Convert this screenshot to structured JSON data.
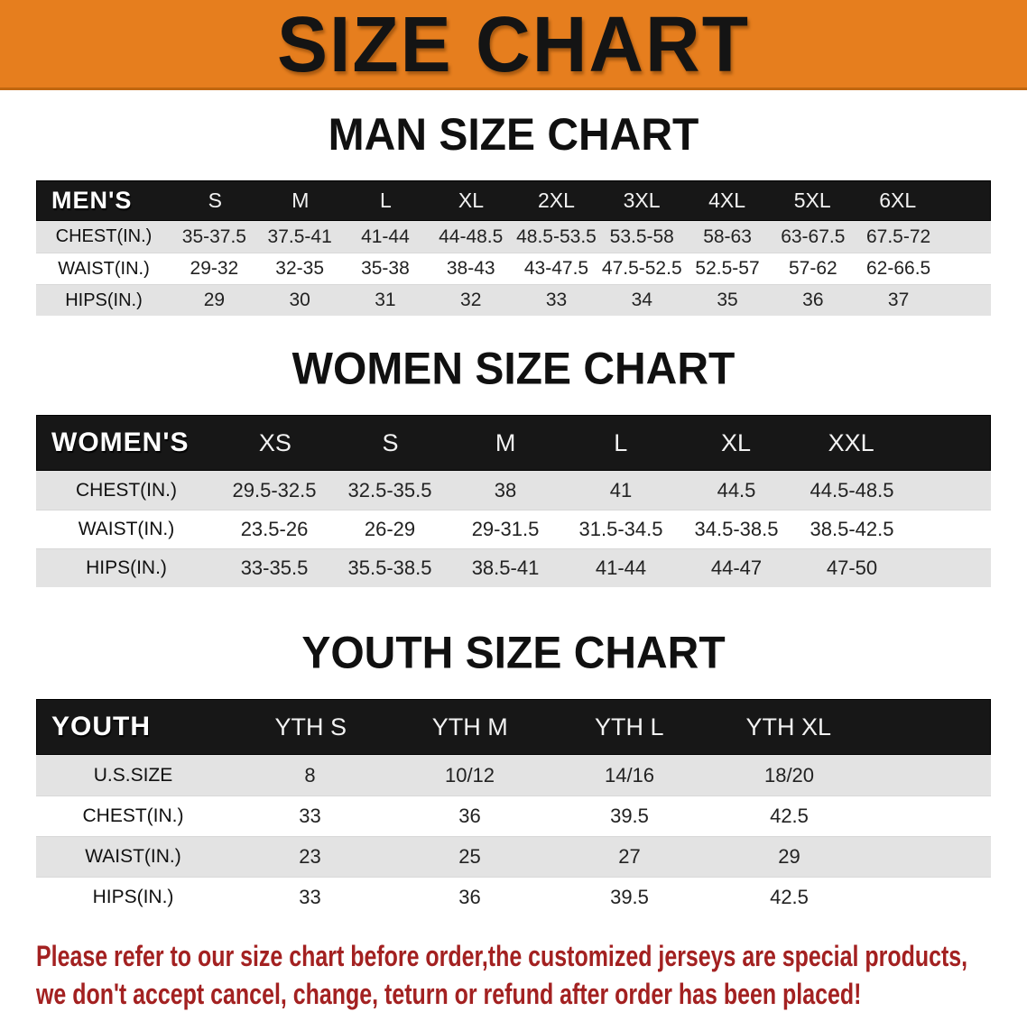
{
  "banner": {
    "title": "SIZE CHART"
  },
  "sections": [
    {
      "id": "men",
      "title": "MAN SIZE CHART",
      "header_label": "MEN'S",
      "columns": [
        "S",
        "M",
        "L",
        "XL",
        "2XL",
        "3XL",
        "4XL",
        "5XL",
        "6XL"
      ],
      "rows": [
        {
          "label": "CHEST(IN.)",
          "values": [
            "35-37.5",
            "37.5-41",
            "41-44",
            "44-48.5",
            "48.5-53.5",
            "53.5-58",
            "58-63",
            "63-67.5",
            "67.5-72"
          ]
        },
        {
          "label": "WAIST(IN.)",
          "values": [
            "29-32",
            "32-35",
            "35-38",
            "38-43",
            "43-47.5",
            "47.5-52.5",
            "52.5-57",
            "57-62",
            "62-66.5"
          ]
        },
        {
          "label": "HIPS(IN.)",
          "values": [
            "29",
            "30",
            "31",
            "32",
            "33",
            "34",
            "35",
            "36",
            "37"
          ]
        }
      ]
    },
    {
      "id": "women",
      "title": "WOMEN SIZE CHART",
      "header_label": "WOMEN'S",
      "columns": [
        "XS",
        "S",
        "M",
        "L",
        "XL",
        "XXL"
      ],
      "rows": [
        {
          "label": "CHEST(IN.)",
          "values": [
            "29.5-32.5",
            "32.5-35.5",
            "38",
            "41",
            "44.5",
            "44.5-48.5"
          ]
        },
        {
          "label": "WAIST(IN.)",
          "values": [
            "23.5-26",
            "26-29",
            "29-31.5",
            "31.5-34.5",
            "34.5-38.5",
            "38.5-42.5"
          ]
        },
        {
          "label": "HIPS(IN.)",
          "values": [
            "33-35.5",
            "35.5-38.5",
            "38.5-41",
            "41-44",
            "44-47",
            "47-50"
          ]
        }
      ]
    },
    {
      "id": "youth",
      "title": "YOUTH SIZE CHART",
      "header_label": "YOUTH",
      "columns": [
        "YTH S",
        "YTH M",
        "YTH L",
        "YTH XL"
      ],
      "rows": [
        {
          "label": "U.S.SIZE",
          "values": [
            "8",
            "10/12",
            "14/16",
            "18/20"
          ]
        },
        {
          "label": "CHEST(IN.)",
          "values": [
            "33",
            "36",
            "39.5",
            "42.5"
          ]
        },
        {
          "label": "WAIST(IN.)",
          "values": [
            "23",
            "25",
            "27",
            "29"
          ]
        },
        {
          "label": "HIPS(IN.)",
          "values": [
            "33",
            "36",
            "39.5",
            "42.5"
          ]
        }
      ]
    }
  ],
  "disclaimer": {
    "line1": "Please refer to our size chart before order,the customized jerseys are special products,",
    "line2": "we don't accept cancel, change, teturn or refund after order has been placed!"
  },
  "colors": {
    "banner_bg": "#E67E1E",
    "banner_text": "#141414",
    "header_bar_bg": "#171717",
    "header_text": "#FFFFFF",
    "row_alt_bg": "#E3E3E3",
    "row_bg": "#FFFFFF",
    "disclaimer_color": "#A32121"
  }
}
